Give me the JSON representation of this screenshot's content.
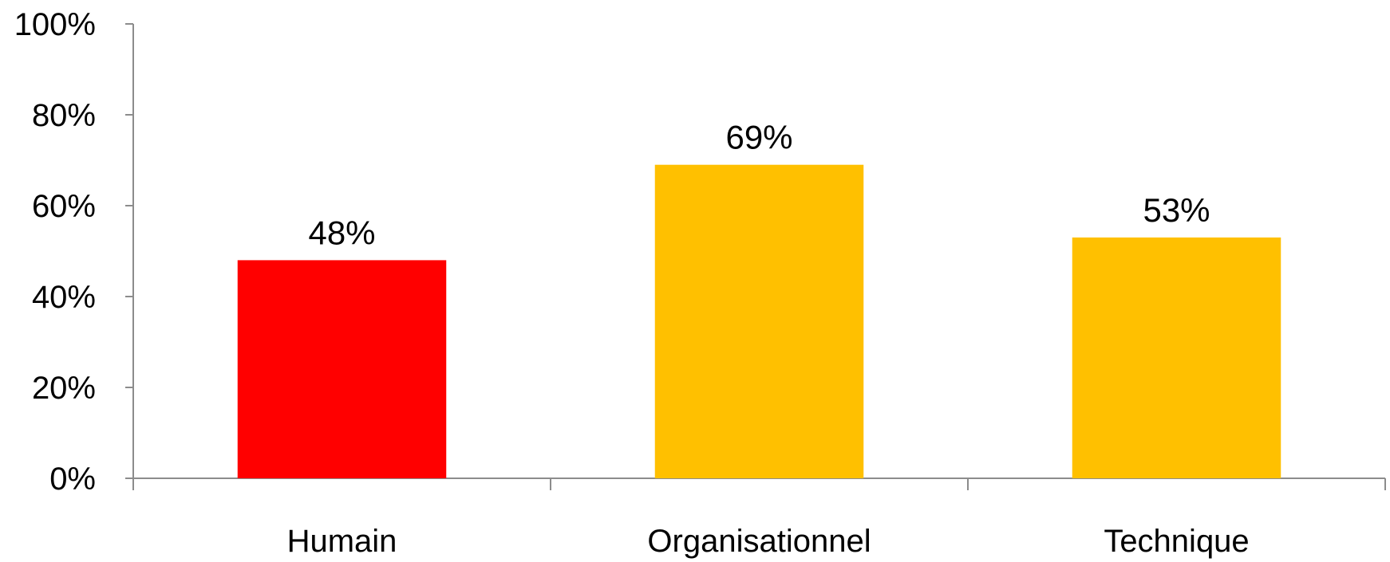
{
  "chart_data": {
    "type": "bar",
    "title": "",
    "xlabel": "",
    "ylabel": "",
    "categories": [
      "Humain",
      "Organisationnel",
      "Technique"
    ],
    "values": [
      48,
      69,
      53
    ],
    "data_labels": [
      "48%",
      "69%",
      "53%"
    ],
    "bar_colors": [
      "#FF0000",
      "#FFC000",
      "#FFC000"
    ],
    "ylim": [
      0,
      100
    ],
    "yticks": [
      0,
      20,
      40,
      60,
      80,
      100
    ],
    "ytick_labels": [
      "0%",
      "20%",
      "40%",
      "60%",
      "80%",
      "100%"
    ],
    "grid": false,
    "legend": "none"
  }
}
